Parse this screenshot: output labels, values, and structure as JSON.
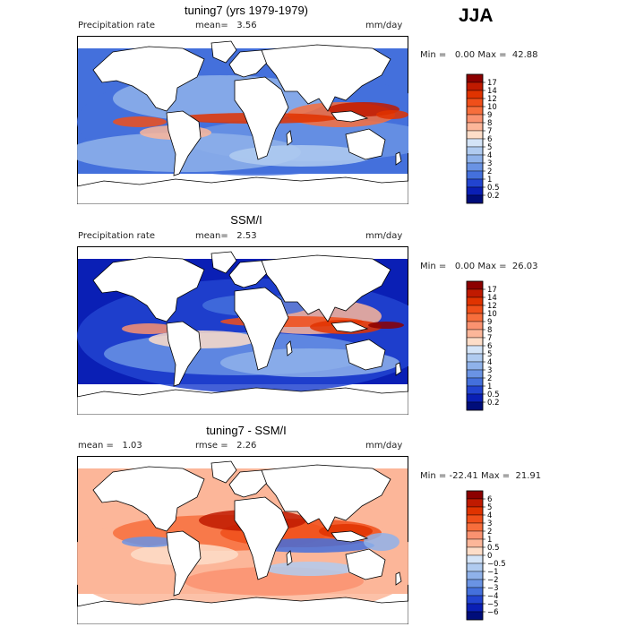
{
  "season": "JJA",
  "panels": [
    {
      "id": "model",
      "title": "tuning7 (yrs 1979-1979)",
      "variable": "Precipitation rate",
      "left_stat": "mean=",
      "left_stat_value": "3.56",
      "right_stat": "",
      "right_stat_value": "",
      "units": "mm/day",
      "min_label": "Min =",
      "min_value": "0.00",
      "max_label": "Max =",
      "max_value": "42.88",
      "kind": "absolute"
    },
    {
      "id": "obs",
      "title": "SSM/I",
      "variable": "Precipitation rate",
      "left_stat": "mean=",
      "left_stat_value": "2.53",
      "right_stat": "",
      "right_stat_value": "",
      "units": "mm/day",
      "min_label": "Min =",
      "min_value": "0.00",
      "max_label": "Max =",
      "max_value": "26.03",
      "kind": "absolute"
    },
    {
      "id": "diff",
      "title": "tuning7 - SSM/I",
      "variable": "",
      "left_stat": "mean =",
      "left_stat_value": "1.03",
      "right_stat": "rmse =",
      "right_stat_value": "2.26",
      "units": "mm/day",
      "min_label": "Min =",
      "min_value": "-22.41",
      "max_label": "Max =",
      "max_value": "21.91",
      "kind": "difference"
    }
  ],
  "colorbars": {
    "absolute": {
      "levels": [
        "17",
        "14",
        "12",
        "10",
        "9",
        "8",
        "7",
        "6",
        "5",
        "4",
        "3",
        "2",
        "1",
        "0.5",
        "0.2"
      ],
      "colors": [
        "#8c0000",
        "#c01a00",
        "#e03300",
        "#f04f1a",
        "#f76e3c",
        "#fa9270",
        "#fcb699",
        "#fdddc8",
        "#d4e4f7",
        "#b0cbf0",
        "#8fb2ea",
        "#6a93e4",
        "#4470dc",
        "#2244d0",
        "#0a1fb5",
        "#000d7a"
      ]
    },
    "difference": {
      "levels": [
        "6",
        "5",
        "4",
        "3",
        "2",
        "1",
        "0.5",
        "0",
        "−0.5",
        "−1",
        "−2",
        "−3",
        "−4",
        "−5",
        "−6"
      ],
      "colors": [
        "#8c0000",
        "#c01a00",
        "#e03300",
        "#f04f1a",
        "#f76e3c",
        "#fa9270",
        "#fcb699",
        "#fdddc8",
        "#d4e4f7",
        "#b0cbf0",
        "#8fb2ea",
        "#6a93e4",
        "#4470dc",
        "#2244d0",
        "#0a1fb5",
        "#000d7a"
      ]
    }
  },
  "chart_data": [
    {
      "type": "heatmap",
      "title": "tuning7 (yrs 1979-1979)",
      "variable": "Precipitation rate",
      "units": "mm/day",
      "mean": 3.56,
      "min": 0.0,
      "max": 42.88,
      "levels": [
        0.2,
        0.5,
        1,
        2,
        3,
        4,
        5,
        6,
        7,
        8,
        9,
        10,
        12,
        14,
        17
      ]
    },
    {
      "type": "heatmap",
      "title": "SSM/I",
      "variable": "Precipitation rate",
      "units": "mm/day",
      "mean": 2.53,
      "min": 0.0,
      "max": 26.03,
      "levels": [
        0.2,
        0.5,
        1,
        2,
        3,
        4,
        5,
        6,
        7,
        8,
        9,
        10,
        12,
        14,
        17
      ]
    },
    {
      "type": "heatmap",
      "title": "tuning7 - SSM/I",
      "units": "mm/day",
      "mean": 1.03,
      "rmse": 2.26,
      "min": -22.41,
      "max": 21.91,
      "levels": [
        -6,
        -5,
        -4,
        -3,
        -2,
        -1,
        -0.5,
        0,
        0.5,
        1,
        2,
        3,
        4,
        5,
        6
      ]
    }
  ]
}
